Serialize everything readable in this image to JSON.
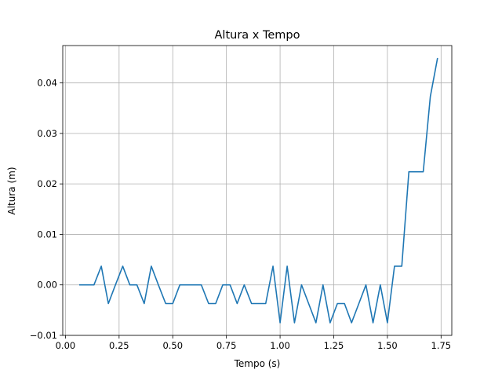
{
  "chart_data": {
    "type": "line",
    "title": "Altura x Tempo",
    "xlabel": "Tempo (s)",
    "ylabel": "Altura (m)",
    "xlim": [
      -0.0125,
      1.8
    ],
    "ylim": [
      -0.01,
      0.0474
    ],
    "grid": true,
    "legend": "none",
    "x_ticks": [
      0.0,
      0.25,
      0.5,
      0.75,
      1.0,
      1.25,
      1.5,
      1.75
    ],
    "x_tick_labels": [
      "0.00",
      "0.25",
      "0.50",
      "0.75",
      "1.00",
      "1.25",
      "1.50",
      "1.75"
    ],
    "y_ticks": [
      -0.01,
      0.0,
      0.01,
      0.02,
      0.03,
      0.04
    ],
    "y_tick_labels": [
      "−0.01",
      "0.00",
      "0.01",
      "0.02",
      "0.03",
      "0.04"
    ],
    "series": [
      {
        "color": "#1f77b4",
        "x": [
          0.067,
          0.1,
          0.133,
          0.167,
          0.2,
          0.233,
          0.267,
          0.3,
          0.333,
          0.367,
          0.4,
          0.433,
          0.467,
          0.5,
          0.533,
          0.567,
          0.6,
          0.633,
          0.667,
          0.7,
          0.733,
          0.767,
          0.8,
          0.833,
          0.867,
          0.9,
          0.933,
          0.967,
          1.0,
          1.033,
          1.067,
          1.1,
          1.133,
          1.167,
          1.2,
          1.233,
          1.267,
          1.3,
          1.333,
          1.367,
          1.4,
          1.433,
          1.467,
          1.5,
          1.533,
          1.567,
          1.6,
          1.633,
          1.667,
          1.7,
          1.733
        ],
        "y": [
          0.0,
          0.0,
          0.0,
          0.0037,
          -0.0037,
          0.0,
          0.0037,
          0.0,
          0.0,
          -0.0037,
          0.0037,
          0.0,
          -0.0037,
          -0.0037,
          0.0,
          0.0,
          0.0,
          0.0,
          -0.0037,
          -0.0037,
          0.0,
          0.0,
          -0.0037,
          0.0,
          -0.0037,
          -0.0037,
          -0.0037,
          0.0037,
          -0.0075,
          0.0037,
          -0.0075,
          0.0,
          -0.0037,
          -0.0075,
          0.0,
          -0.0075,
          -0.0037,
          -0.0037,
          -0.0075,
          -0.0037,
          0.0,
          -0.0075,
          0.0,
          -0.0075,
          0.0037,
          0.0037,
          0.0224,
          0.0224,
          0.0224,
          0.0373,
          0.0448
        ]
      }
    ]
  }
}
